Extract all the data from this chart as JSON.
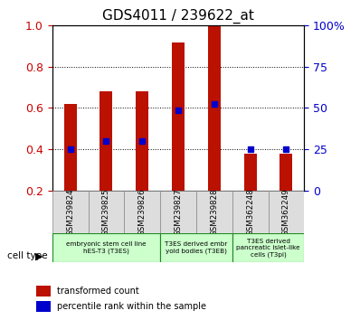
{
  "title": "GDS4011 / 239622_at",
  "samples": [
    "GSM239824",
    "GSM239825",
    "GSM239826",
    "GSM239827",
    "GSM239828",
    "GSM362248",
    "GSM362249"
  ],
  "transformed_counts": [
    0.62,
    0.68,
    0.68,
    0.92,
    1.0,
    0.38,
    0.38
  ],
  "percentile_ranks": [
    0.4,
    0.44,
    0.44,
    0.59,
    0.62,
    0.4,
    0.4
  ],
  "bar_color": "#bb1100",
  "dot_color": "#0000cc",
  "ylim": [
    0.2,
    1.0
  ],
  "yticks_left": [
    0.2,
    0.4,
    0.6,
    0.8,
    1.0
  ],
  "yticks_right_vals": [
    0.2,
    0.4,
    0.6,
    0.8,
    1.0
  ],
  "yticks_right_labels": [
    "0",
    "25",
    "50",
    "75",
    "100%"
  ],
  "left_tick_color": "#cc0000",
  "right_tick_color": "#0000cc",
  "groups": [
    {
      "label": "embryonic stem cell line\nhES-T3 (T3ES)",
      "start": 0,
      "end": 2
    },
    {
      "label": "T3ES derived embr\nyoid bodies (T3EB)",
      "start": 3,
      "end": 4
    },
    {
      "label": "T3ES derived\npancreatic islet-like\ncells (T3pi)",
      "start": 5,
      "end": 6
    }
  ],
  "group_color": "#ccffcc",
  "sample_box_color": "#dddddd",
  "legend_red_label": "transformed count",
  "legend_blue_label": "percentile rank within the sample",
  "cell_type_label": "cell type"
}
